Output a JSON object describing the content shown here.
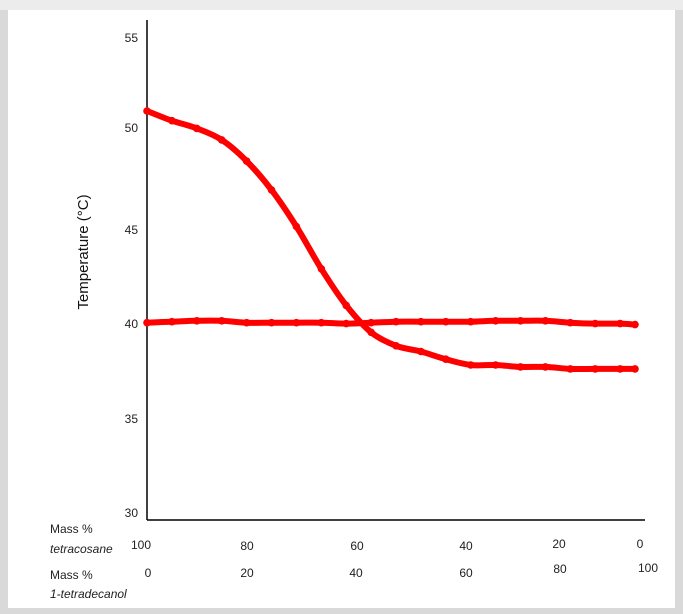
{
  "chart_data": {
    "type": "line",
    "ylabel": "Temperature (°C)",
    "ylim": [
      30,
      55
    ],
    "yticks": [
      "55",
      "50",
      "45",
      "40",
      "35",
      "30"
    ],
    "x_rows": [
      {
        "label_line1": "Mass %",
        "label_line2": "tetracosane",
        "ticks": [
          "100",
          "80",
          "60",
          "40",
          "20",
          "0"
        ]
      },
      {
        "label_line1": "Mass %",
        "label_line2": "1-tetradecanol",
        "ticks": [
          "0",
          "20",
          "40",
          "60",
          "80",
          "100"
        ]
      }
    ],
    "x_axis_quantity": "Mass % 1-tetradecanol",
    "xlim": [
      0,
      100
    ],
    "grid": false,
    "line_color": "#ff0000",
    "series": [
      {
        "x": [
          0,
          5,
          10,
          15,
          20,
          25,
          30,
          35,
          40,
          45,
          50,
          55,
          60,
          65,
          70,
          75,
          80,
          85,
          90,
          95,
          98
        ],
        "values": [
          51.1,
          50.6,
          50.2,
          49.6,
          48.5,
          47.0,
          45.1,
          42.9,
          41.0,
          39.6,
          38.9,
          38.6,
          38.2,
          37.9,
          37.9,
          37.8,
          37.8,
          37.7,
          37.7,
          37.7,
          37.7
        ]
      },
      {
        "x": [
          0,
          5,
          10,
          15,
          20,
          25,
          30,
          35,
          40,
          45,
          50,
          55,
          60,
          65,
          70,
          75,
          80,
          85,
          90,
          95,
          98
        ],
        "values": [
          40.1,
          40.15,
          40.2,
          40.2,
          40.1,
          40.1,
          40.1,
          40.1,
          40.05,
          40.1,
          40.15,
          40.15,
          40.15,
          40.15,
          40.2,
          40.2,
          40.2,
          40.1,
          40.05,
          40.05,
          40.0
        ]
      }
    ]
  }
}
